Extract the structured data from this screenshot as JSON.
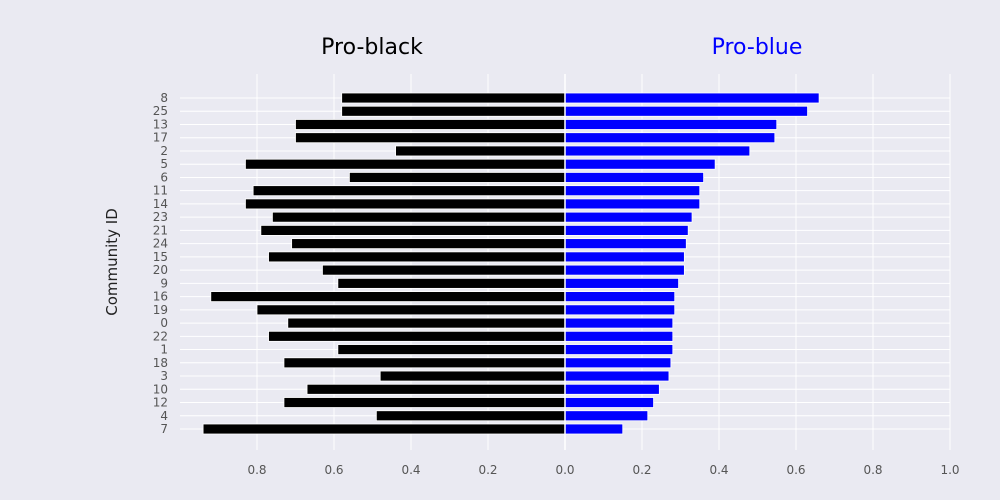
{
  "chart_data": {
    "type": "bar",
    "orientation": "horizontal",
    "ylabel": "Community ID",
    "xlim": [
      -1.0,
      1.0
    ],
    "x_ticks": [
      -0.8,
      -0.6,
      -0.4,
      -0.2,
      0.0,
      0.2,
      0.4,
      0.6,
      0.8,
      1.0
    ],
    "x_tick_labels": [
      "0.8",
      "0.6",
      "0.4",
      "0.2",
      "0.0",
      "0.2",
      "0.4",
      "0.6",
      "0.8",
      "1.0"
    ],
    "grid": true,
    "categories": [
      "8",
      "25",
      "13",
      "17",
      "2",
      "5",
      "6",
      "11",
      "14",
      "23",
      "21",
      "24",
      "15",
      "20",
      "9",
      "16",
      "19",
      "0",
      "22",
      "1",
      "18",
      "3",
      "10",
      "12",
      "4",
      "7"
    ],
    "series": [
      {
        "name": "Pro-black",
        "color": "#000000",
        "values": [
          0.58,
          0.58,
          0.7,
          0.7,
          0.44,
          0.83,
          0.56,
          0.81,
          0.83,
          0.76,
          0.79,
          0.71,
          0.77,
          0.63,
          0.59,
          0.92,
          0.8,
          0.72,
          0.77,
          0.59,
          0.73,
          0.48,
          0.67,
          0.73,
          0.49,
          0.94
        ]
      },
      {
        "name": "Pro-blue",
        "color": "#0000ff",
        "values": [
          0.66,
          0.63,
          0.55,
          0.545,
          0.48,
          0.39,
          0.36,
          0.35,
          0.35,
          0.33,
          0.32,
          0.315,
          0.31,
          0.31,
          0.295,
          0.285,
          0.285,
          0.28,
          0.28,
          0.28,
          0.275,
          0.27,
          0.245,
          0.23,
          0.215,
          0.15
        ]
      }
    ]
  }
}
